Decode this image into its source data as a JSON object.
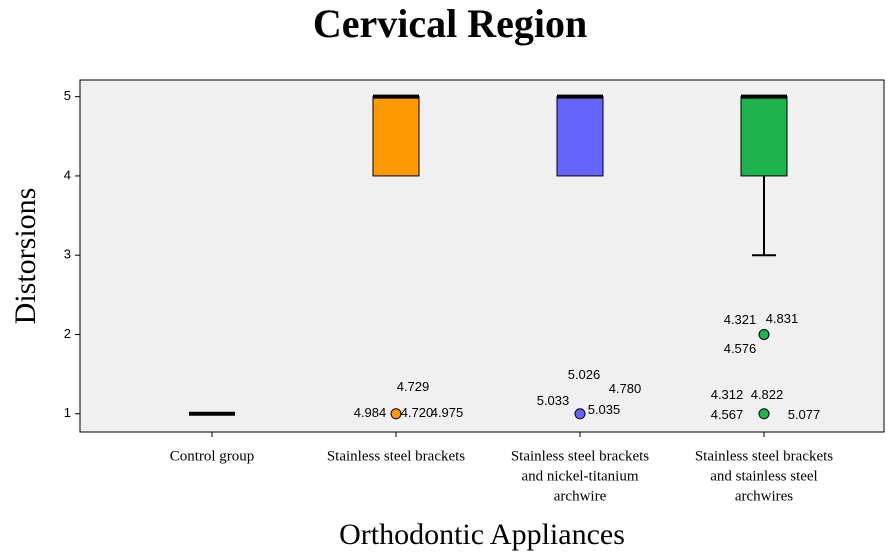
{
  "chart_data": {
    "type": "box",
    "title": "Cervical Region",
    "xlabel": "Orthodontic Appliances",
    "ylabel": "Distorsions",
    "categories": [
      [
        "Control group"
      ],
      [
        "Stainless steel brackets"
      ],
      [
        "Stainless steel brackets",
        "and nickel-titanium",
        "archwire"
      ],
      [
        "Stainless steel brackets",
        "and stainless steel",
        "archwires"
      ]
    ],
    "series": [
      {
        "color": "#000000",
        "min": 1,
        "q1": 1,
        "median": 1,
        "q3": 1,
        "max": 1,
        "outliers": []
      },
      {
        "color": "#ff9900",
        "min": 4,
        "q1": 4,
        "median": 5,
        "q3": 5,
        "max": 5,
        "outliers": [
          {
            "value": 1,
            "labels": [
              "4.729",
              "4.984",
              "4.720",
              "4.975"
            ]
          }
        ]
      },
      {
        "color": "#6666ff",
        "min": 4,
        "q1": 4,
        "median": 5,
        "q3": 5,
        "max": 5,
        "outliers": [
          {
            "value": 1,
            "labels": [
              "5.026",
              "4.780",
              "5.033",
              "5.035"
            ]
          }
        ]
      },
      {
        "color": "#1db34d",
        "min": 3,
        "q1": 4,
        "median": 5,
        "q3": 5,
        "max": 5,
        "outliers": [
          {
            "value": 2,
            "labels": [
              "4.321",
              "4.831",
              "4.576"
            ]
          },
          {
            "value": 1,
            "labels": [
              "4.312",
              "4.822",
              "4.567",
              "5.077"
            ]
          }
        ]
      }
    ],
    "ylim": [
      0.77,
      5.21
    ],
    "yticks": [
      1,
      2,
      3,
      4,
      5
    ]
  }
}
